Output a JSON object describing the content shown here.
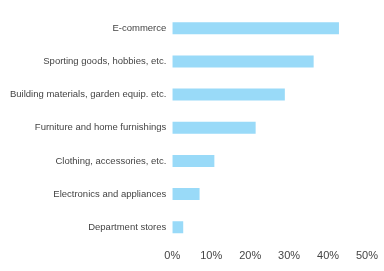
{
  "chart_data": {
    "type": "bar",
    "orientation": "horizontal",
    "categories": [
      "E-commerce",
      "Sporting goods, hobbies, etc.",
      "Building materials, garden equip. etc.",
      "Furniture and home furnishings",
      "Clothing, accessories, etc.",
      "Electronics and appliances",
      "Department stores"
    ],
    "values": [
      42.8,
      36.3,
      28.9,
      21.4,
      10.8,
      7,
      2.8
    ],
    "color": "#99daf8",
    "xlim": [
      0,
      50
    ],
    "xticks": [
      {
        "value": 0,
        "label": "0%"
      },
      {
        "value": 10,
        "label": "10%"
      },
      {
        "value": 20,
        "label": "20%"
      },
      {
        "value": 30,
        "label": "30%"
      },
      {
        "value": 40,
        "label": "40%"
      },
      {
        "value": 50,
        "label": "50%"
      }
    ],
    "grid": false
  }
}
